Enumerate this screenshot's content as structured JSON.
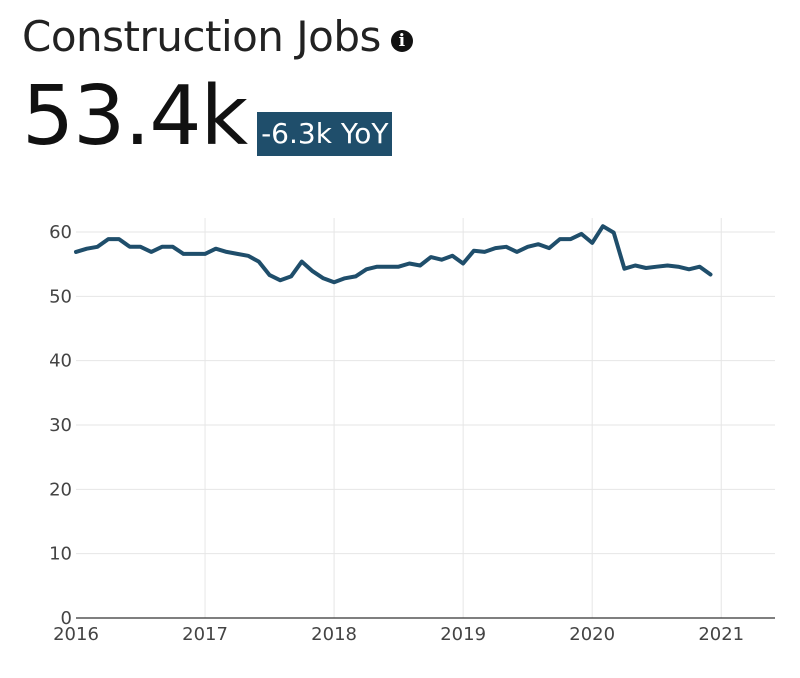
{
  "header": {
    "title": "Construction Jobs",
    "info_icon": "info-icon",
    "value": "53.4k",
    "change": "-6.3k YoY"
  },
  "colors": {
    "line": "#1f4e6b",
    "badge_bg": "#1f4e6b",
    "grid": "#e6e6e6"
  },
  "chart_data": {
    "type": "line",
    "title": "",
    "xlabel": "",
    "ylabel": "",
    "xlim": [
      "2016-01",
      "2021-06"
    ],
    "ylim": [
      0,
      60
    ],
    "grid": true,
    "x_ticks": [
      "2016",
      "2017",
      "2018",
      "2019",
      "2020",
      "2021"
    ],
    "y_ticks": [
      "0",
      "10",
      "20",
      "30",
      "40",
      "50",
      "60"
    ],
    "series": [
      {
        "name": "",
        "x": [
          "2016-01",
          "2016-02",
          "2016-03",
          "2016-04",
          "2016-05",
          "2016-06",
          "2016-07",
          "2016-08",
          "2016-09",
          "2016-10",
          "2016-11",
          "2016-12",
          "2017-01",
          "2017-02",
          "2017-03",
          "2017-04",
          "2017-05",
          "2017-06",
          "2017-07",
          "2017-08",
          "2017-09",
          "2017-10",
          "2017-11",
          "2017-12",
          "2018-01",
          "2018-02",
          "2018-03",
          "2018-04",
          "2018-05",
          "2018-06",
          "2018-07",
          "2018-08",
          "2018-09",
          "2018-10",
          "2018-11",
          "2018-12",
          "2019-01",
          "2019-02",
          "2019-03",
          "2019-04",
          "2019-05",
          "2019-06",
          "2019-07",
          "2019-08",
          "2019-09",
          "2019-10",
          "2019-11",
          "2019-12",
          "2020-01",
          "2020-02",
          "2020-03",
          "2020-04",
          "2020-05",
          "2020-06",
          "2020-07",
          "2020-08",
          "2020-09",
          "2020-10",
          "2020-11",
          "2020-12"
        ],
        "values": [
          56.9,
          57.4,
          57.7,
          58.9,
          58.9,
          57.7,
          57.7,
          56.9,
          57.7,
          57.7,
          56.6,
          56.6,
          56.6,
          57.4,
          56.9,
          56.6,
          56.3,
          55.4,
          53.3,
          52.5,
          53.1,
          55.4,
          53.9,
          52.8,
          52.2,
          52.8,
          53.1,
          54.2,
          54.6,
          54.6,
          54.6,
          55.1,
          54.8,
          56.1,
          55.7,
          56.3,
          55.1,
          57.1,
          56.9,
          57.5,
          57.7,
          56.9,
          57.7,
          58.1,
          57.5,
          58.9,
          58.9,
          59.7,
          58.3,
          60.9,
          59.9,
          54.3,
          54.8,
          54.4,
          54.6,
          54.8,
          54.6,
          54.2,
          54.6,
          53.4
        ]
      }
    ]
  }
}
